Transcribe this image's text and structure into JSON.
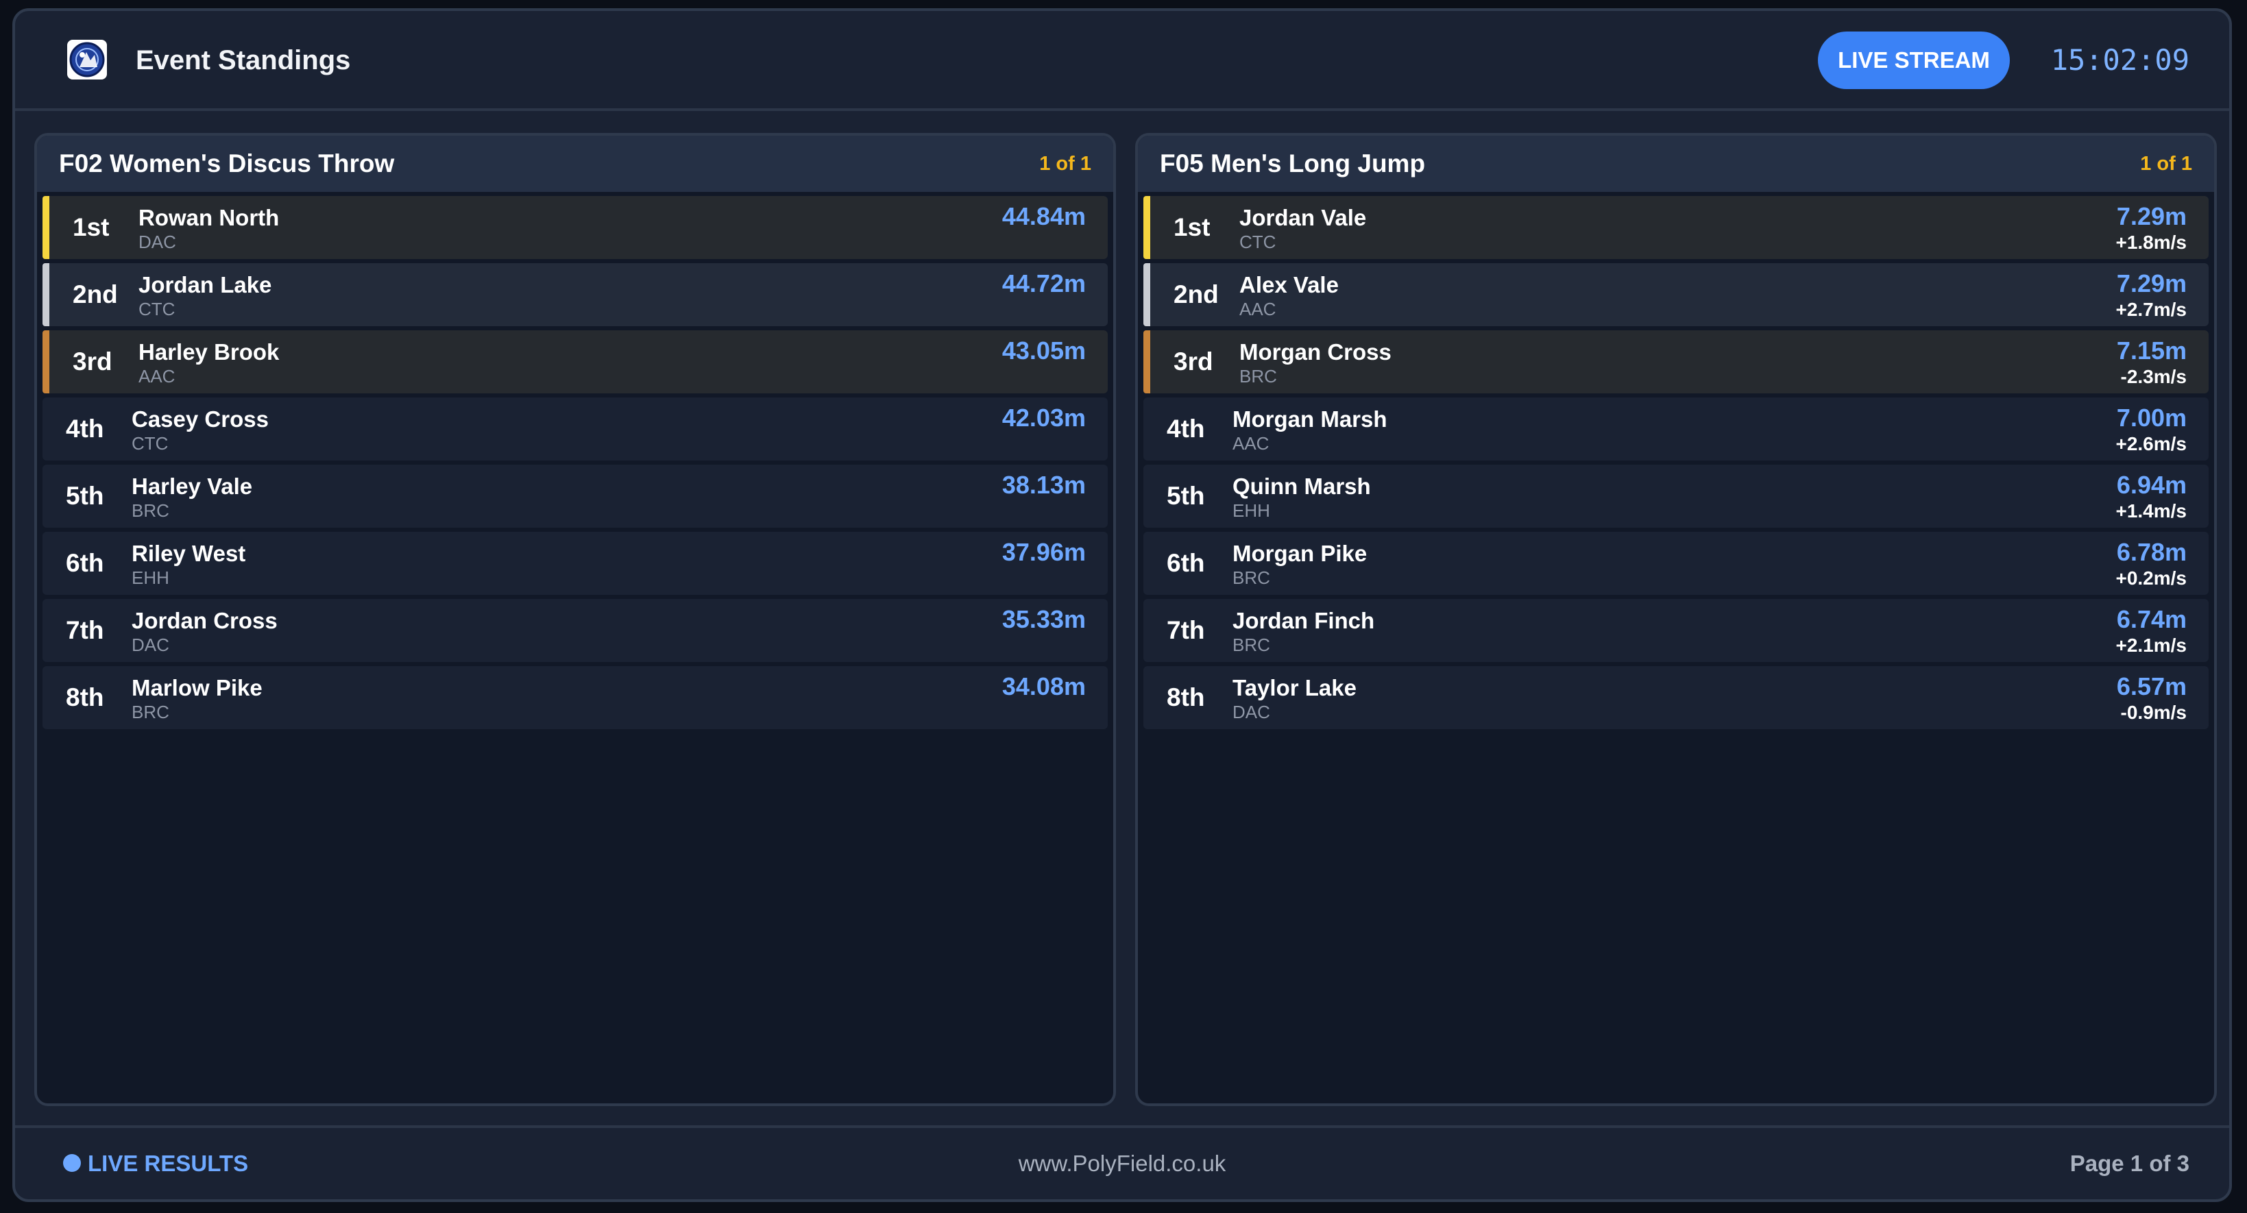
{
  "header": {
    "title": "Event Standings",
    "live_button": "LIVE STREAM",
    "clock": "15:02:09"
  },
  "colors": {
    "gold": "#f5d53f",
    "silver": "#c9ccd3",
    "bronze": "#c9843a",
    "accent": "#3b82f6",
    "mark": "#6ea8ff",
    "page_indicator": "#f5b81c"
  },
  "panels": [
    {
      "title": "F02 Women's Discus Throw",
      "page": "1 of 1",
      "rows": [
        {
          "rank": "1st",
          "name": "Rowan North",
          "club": "DAC",
          "mark": "44.84m"
        },
        {
          "rank": "2nd",
          "name": "Jordan Lake",
          "club": "CTC",
          "mark": "44.72m"
        },
        {
          "rank": "3rd",
          "name": "Harley Brook",
          "club": "AAC",
          "mark": "43.05m"
        },
        {
          "rank": "4th",
          "name": "Casey Cross",
          "club": "CTC",
          "mark": "42.03m"
        },
        {
          "rank": "5th",
          "name": "Harley Vale",
          "club": "BRC",
          "mark": "38.13m"
        },
        {
          "rank": "6th",
          "name": "Riley West",
          "club": "EHH",
          "mark": "37.96m"
        },
        {
          "rank": "7th",
          "name": "Jordan Cross",
          "club": "DAC",
          "mark": "35.33m"
        },
        {
          "rank": "8th",
          "name": "Marlow Pike",
          "club": "BRC",
          "mark": "34.08m"
        }
      ]
    },
    {
      "title": "F05 Men's Long Jump",
      "page": "1 of 1",
      "rows": [
        {
          "rank": "1st",
          "name": "Jordan Vale",
          "club": "CTC",
          "mark": "7.29m",
          "wind": "+1.8m/s"
        },
        {
          "rank": "2nd",
          "name": "Alex Vale",
          "club": "AAC",
          "mark": "7.29m",
          "wind": "+2.7m/s"
        },
        {
          "rank": "3rd",
          "name": "Morgan Cross",
          "club": "BRC",
          "mark": "7.15m",
          "wind": "-2.3m/s"
        },
        {
          "rank": "4th",
          "name": "Morgan Marsh",
          "club": "AAC",
          "mark": "7.00m",
          "wind": "+2.6m/s"
        },
        {
          "rank": "5th",
          "name": "Quinn Marsh",
          "club": "EHH",
          "mark": "6.94m",
          "wind": "+1.4m/s"
        },
        {
          "rank": "6th",
          "name": "Morgan Pike",
          "club": "BRC",
          "mark": "6.78m",
          "wind": "+0.2m/s"
        },
        {
          "rank": "7th",
          "name": "Jordan Finch",
          "club": "BRC",
          "mark": "6.74m",
          "wind": "+2.1m/s"
        },
        {
          "rank": "8th",
          "name": "Taylor Lake",
          "club": "DAC",
          "mark": "6.57m",
          "wind": "-0.9m/s"
        }
      ]
    }
  ],
  "footer": {
    "live_results": "LIVE RESULTS",
    "site": "www.PolyField.co.uk",
    "page_info": "Page 1 of 3"
  }
}
